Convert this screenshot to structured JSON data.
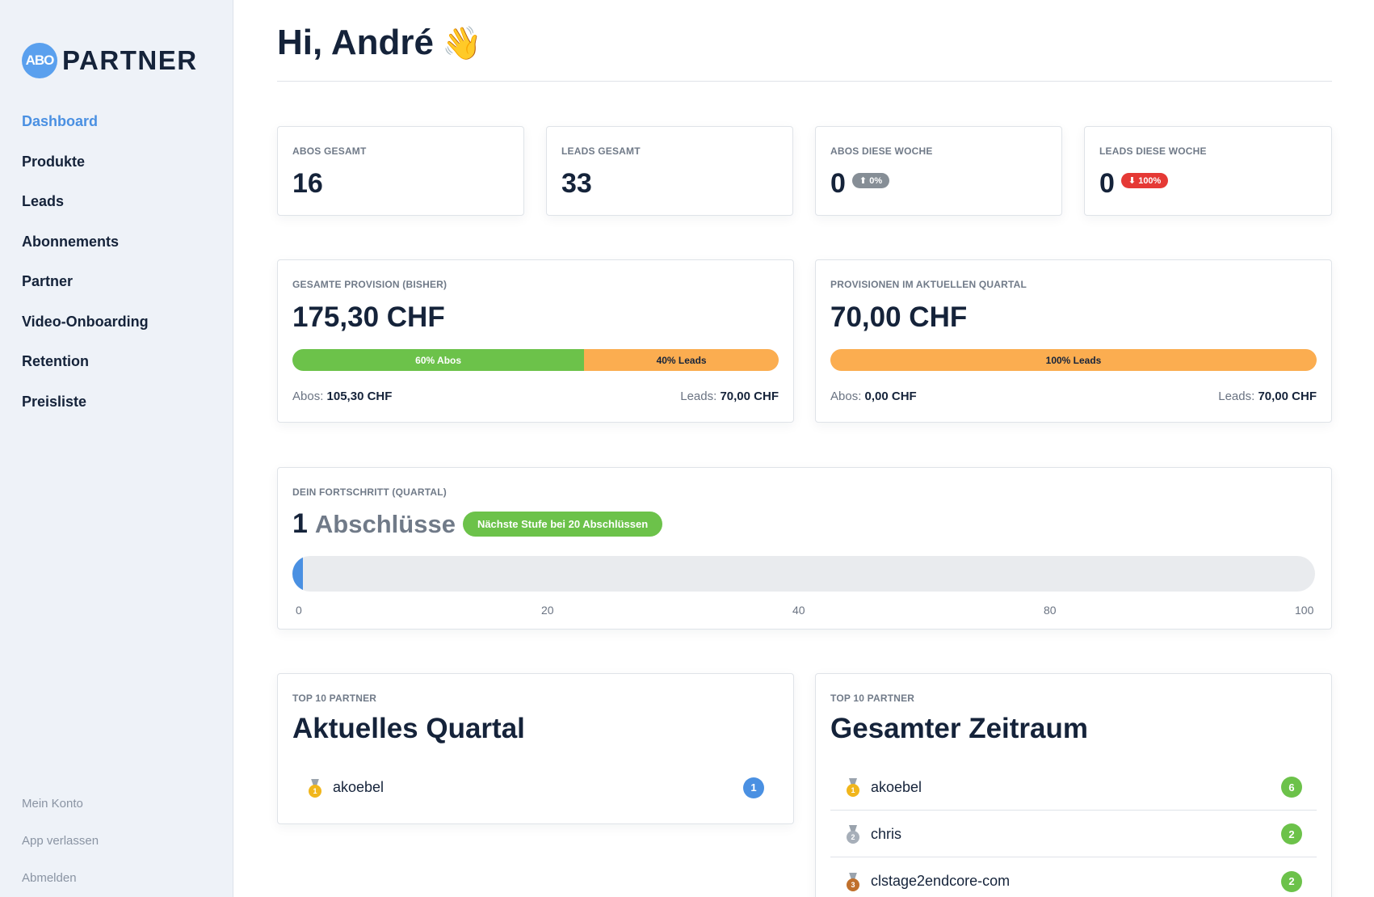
{
  "app": {
    "logo_badge": "ABO",
    "logo_text": "PARTNER"
  },
  "sidebar": {
    "items": [
      {
        "label": "Dashboard",
        "active": true
      },
      {
        "label": "Produkte"
      },
      {
        "label": "Leads"
      },
      {
        "label": "Abonnements"
      },
      {
        "label": "Partner"
      },
      {
        "label": "Video-Onboarding"
      },
      {
        "label": "Retention"
      },
      {
        "label": "Preisliste"
      }
    ],
    "footer": [
      {
        "label": "Mein Konto"
      },
      {
        "label": "App verlassen"
      },
      {
        "label": "Abmelden"
      }
    ]
  },
  "header": {
    "greeting": "Hi, André",
    "emoji": "👋"
  },
  "stats": [
    {
      "label": "ABOS GESAMT",
      "value": "16"
    },
    {
      "label": "LEADS GESAMT",
      "value": "33"
    },
    {
      "label": "ABOS DIESE WOCHE",
      "value": "0",
      "trend": "⬆ 0%",
      "trend_color": "#868e96"
    },
    {
      "label": "LEADS DIESE WOCHE",
      "value": "0",
      "trend": "⬇ 100%",
      "trend_color": "#e53935"
    }
  ],
  "provision_total": {
    "label": "GESAMTE PROVISION (BISHER)",
    "amount": "175,30 CHF",
    "split": [
      {
        "label": "60% Abos",
        "percent": 60,
        "color": "#6cc24a"
      },
      {
        "label": "40% Leads",
        "percent": 40,
        "color": "#fbad50"
      }
    ],
    "abos_label": "Abos:",
    "abos_value": "105,30 CHF",
    "leads_label": "Leads:",
    "leads_value": "70,00 CHF"
  },
  "provision_quarter": {
    "label": "PROVISIONEN IM AKTUELLEN QUARTAL",
    "amount": "70,00 CHF",
    "split": [
      {
        "label": "100% Leads",
        "percent": 100,
        "color": "#fbad50"
      }
    ],
    "abos_label": "Abos:",
    "abos_value": "0,00 CHF",
    "leads_label": "Leads:",
    "leads_value": "70,00 CHF"
  },
  "progress": {
    "label": "DEIN FORTSCHRITT (QUARTAL)",
    "count": "1",
    "unit": "Abschlüsse",
    "next_level": "Nächste Stufe bei 20 Abschlüssen",
    "value": 1,
    "max": 100,
    "ticks": [
      "0",
      "20",
      "40",
      "80",
      "100"
    ]
  },
  "leaderboard_quarter": {
    "label": "TOP 10 PARTNER",
    "title": "Aktuelles Quartal",
    "rows": [
      {
        "rank": "1",
        "medal": "gold",
        "name": "akoebel",
        "count": "1"
      }
    ]
  },
  "leaderboard_total": {
    "label": "TOP 10 PARTNER",
    "title": "Gesamter Zeitraum",
    "rows": [
      {
        "rank": "1",
        "medal": "gold",
        "name": "akoebel",
        "count": "6"
      },
      {
        "rank": "2",
        "medal": "silver",
        "name": "chris",
        "count": "2"
      },
      {
        "rank": "3",
        "medal": "bronze",
        "name": "clstage2endcore-com",
        "count": "2"
      }
    ]
  }
}
